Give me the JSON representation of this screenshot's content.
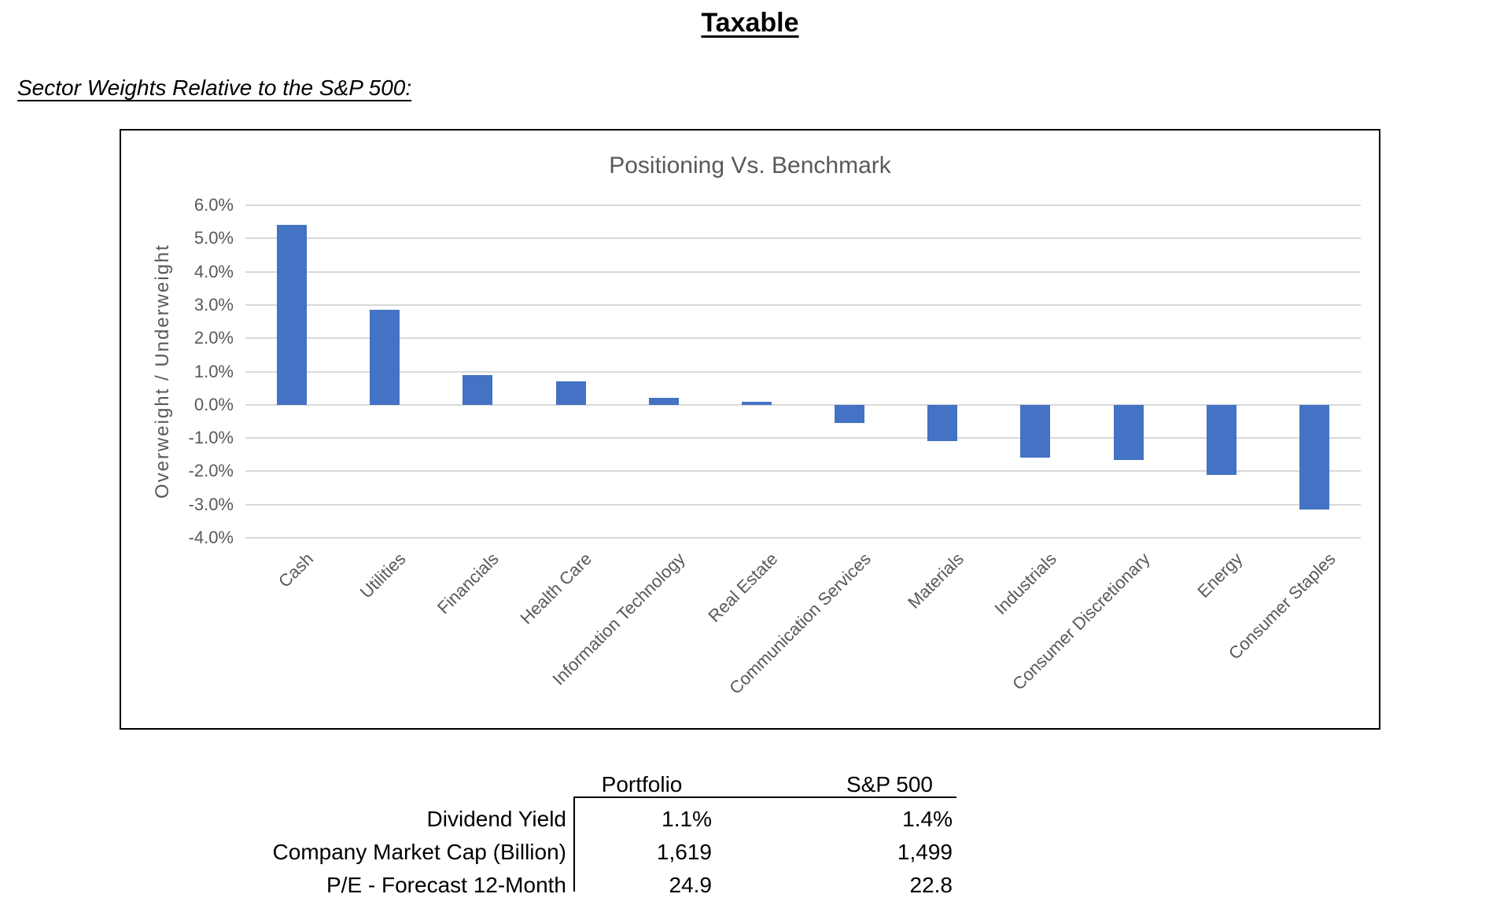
{
  "page": {
    "title": "Taxable",
    "subtitle": "Sector Weights Relative to the S&P 500:"
  },
  "chart_data": {
    "type": "bar",
    "title": "Positioning Vs. Benchmark",
    "xlabel": "",
    "ylabel": "Overweight / Underweight",
    "categories": [
      "Cash",
      "Utilities",
      "Financials",
      "Health Care",
      "Information Technology",
      "Real Estate",
      "Communication Services",
      "Materials",
      "Industrials",
      "Consumer Discretionary",
      "Energy",
      "Consumer Staples"
    ],
    "values": [
      5.4,
      2.85,
      0.9,
      0.7,
      0.2,
      0.1,
      -0.55,
      -1.1,
      -1.6,
      -1.65,
      -2.1,
      -3.15
    ],
    "ylim": [
      -4.0,
      6.0
    ],
    "ytick_step": 1.0,
    "ytick_labels": [
      "6.0%",
      "5.0%",
      "4.0%",
      "3.0%",
      "2.0%",
      "1.0%",
      "0.0%",
      "-1.0%",
      "-2.0%",
      "-3.0%",
      "-4.0%"
    ],
    "grid": true,
    "legend": "none",
    "bar_color": "#4472C4",
    "gridline_color": "#D9D9D9",
    "axis_text_color": "#595959"
  },
  "table": {
    "col_headers": [
      "Portfolio",
      "S&P 500"
    ],
    "rows": [
      [
        "Dividend Yield",
        "1.1%",
        "1.4%"
      ],
      [
        "Company Market Cap (Billion)",
        "1,619",
        "1,499"
      ],
      [
        "P/E - Forecast 12-Month",
        "24.9",
        "22.8"
      ]
    ]
  }
}
